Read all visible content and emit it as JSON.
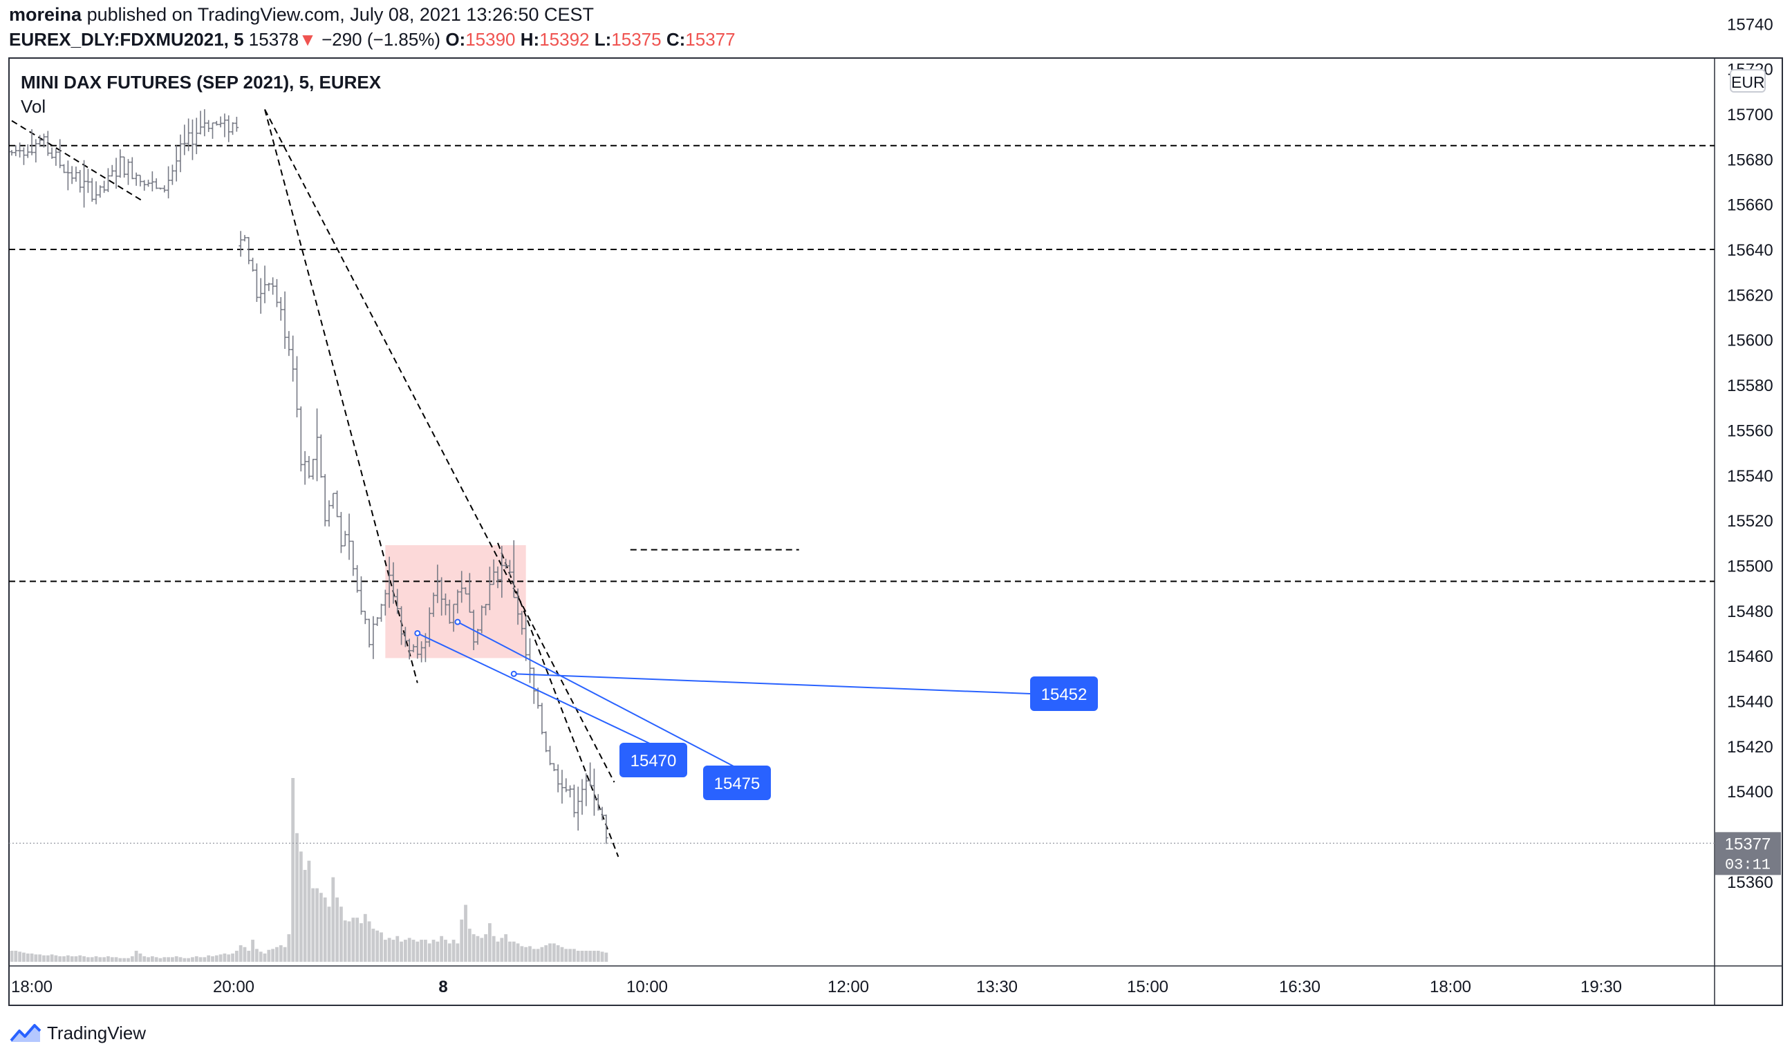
{
  "header": {
    "author": "moreina",
    "published_text": "published on TradingView.com, July 08, 2021 13:26:50 CEST",
    "symbol": "EUREX_DLY:FDXMU2021, 5",
    "last": "15378",
    "change": "−290 (−1.85%)",
    "open_label": "O:",
    "open": "15390",
    "high_label": "H:",
    "high": "15392",
    "low_label": "L:",
    "low": "15375",
    "close_label": "C:",
    "close": "15377"
  },
  "legend": {
    "title": "MINI DAX FUTURES (SEP 2021), 5, EUREX",
    "volume_label": "Vol"
  },
  "currency": "EUR",
  "brand": "TradingView",
  "colors": {
    "bar": "#787b86",
    "volume": "#c9cacd",
    "zone": "#fcd9d9",
    "callout": "#2962ff",
    "price_tag": "#787b86",
    "down": "#ef5350"
  },
  "chart_data": {
    "type": "ohlc",
    "bar_interval_minutes": 5,
    "y_axis": {
      "ylim": [
        15344,
        15742
      ],
      "ticks": [
        15740,
        15720,
        15700,
        15680,
        15660,
        15640,
        15620,
        15600,
        15580,
        15560,
        15540,
        15520,
        15500,
        15480,
        15460,
        15440,
        15420,
        15400,
        15360
      ]
    },
    "x_axis": {
      "ticks": [
        "18:00",
        "20:00",
        "8",
        "10:00",
        "12:00",
        "13:30",
        "15:00",
        "16:30",
        "18:00",
        "19:30"
      ]
    },
    "current_price": {
      "price": "15377",
      "countdown": "03:11"
    },
    "price_segments": [
      {
        "start_bar": 0,
        "points": [
          [
            0,
            15683
          ],
          [
            7,
            15688
          ],
          [
            12,
            15678
          ],
          [
            18,
            15668
          ],
          [
            22,
            15664
          ],
          [
            27,
            15678
          ],
          [
            33,
            15672
          ],
          [
            37,
            15664
          ],
          [
            42,
            15683
          ],
          [
            48,
            15697
          ],
          [
            53,
            15694
          ],
          [
            56,
            15696
          ]
        ]
      },
      {
        "start_bar": 57,
        "points": [
          [
            0,
            15648
          ],
          [
            2,
            15636
          ],
          [
            4,
            15620
          ],
          [
            7,
            15628
          ],
          [
            9,
            15618
          ],
          [
            11,
            15604
          ],
          [
            13,
            15590
          ],
          [
            15,
            15548
          ],
          [
            17,
            15540
          ],
          [
            19,
            15558
          ],
          [
            21,
            15520
          ],
          [
            23,
            15532
          ],
          [
            25,
            15512
          ],
          [
            27,
            15508
          ],
          [
            29,
            15488
          ],
          [
            32,
            15468
          ],
          [
            34,
            15480
          ],
          [
            37,
            15496
          ],
          [
            40,
            15470
          ],
          [
            43,
            15462
          ],
          [
            46,
            15470
          ],
          [
            49,
            15490
          ],
          [
            52,
            15478
          ],
          [
            55,
            15492
          ],
          [
            58,
            15470
          ],
          [
            61,
            15486
          ],
          [
            63,
            15494
          ],
          [
            66,
            15502
          ],
          [
            69,
            15480
          ],
          [
            71,
            15460
          ],
          [
            72,
            15452
          ],
          [
            74,
            15434
          ],
          [
            76,
            15420
          ],
          [
            78,
            15408
          ],
          [
            80,
            15405
          ],
          [
            83,
            15394
          ],
          [
            85,
            15402
          ],
          [
            88,
            15400
          ],
          [
            90,
            15388
          ],
          [
            91,
            15377
          ]
        ]
      }
    ],
    "volume": [
      {
        "start_bar": 0,
        "values": [
          12,
          12,
          11,
          10,
          9,
          9,
          8,
          8,
          7,
          7,
          8,
          7,
          6,
          6,
          7,
          6,
          6,
          7,
          6,
          5,
          5,
          6,
          5,
          5,
          6,
          5,
          5,
          4,
          4,
          4,
          6,
          12,
          9,
          6,
          5,
          6,
          5,
          4,
          5,
          5,
          5,
          6,
          5,
          4,
          4,
          5,
          6,
          5,
          5,
          7,
          6,
          7,
          8,
          9,
          8,
          9,
          12
        ]
      },
      {
        "start_bar": 57,
        "values": [
          18,
          16,
          12,
          24,
          14,
          11,
          9,
          13,
          14,
          16,
          18,
          16,
          30,
          200,
          140,
          120,
          100,
          110,
          80,
          80,
          75,
          70,
          60,
          92,
          70,
          60,
          45,
          44,
          48,
          48,
          42,
          52,
          44,
          36,
          34,
          32,
          24,
          26,
          24,
          28,
          22,
          24,
          26,
          24,
          22,
          24,
          24,
          20,
          24,
          22,
          28,
          24,
          20,
          24,
          20,
          46,
          62,
          36,
          30,
          28,
          26,
          30,
          42,
          28,
          22,
          26,
          30,
          22,
          22,
          20,
          17,
          16,
          17,
          14,
          14,
          16,
          18,
          20,
          20,
          18,
          16,
          14,
          14,
          14,
          12,
          12,
          12,
          12,
          12,
          12,
          11,
          10
        ]
      }
    ],
    "horizontal_lines": [
      15686,
      15640,
      15493
    ],
    "horizontal_ray": {
      "price": 15507,
      "from_bar": 154,
      "to_bar": 196
    },
    "trend_lines": [
      {
        "from": [
          0,
          15697
        ],
        "to": [
          33,
          15661
        ]
      },
      {
        "from": [
          63,
          15702
        ],
        "to": [
          150,
          15404
        ]
      },
      {
        "from": [
          63,
          15702
        ],
        "to": [
          101,
          15448
        ]
      },
      {
        "from": [
          121,
          15510
        ],
        "to": [
          151,
          15371
        ]
      }
    ],
    "zone": {
      "from_bar": 93,
      "to_bar": 128,
      "high": 15509,
      "low": 15459
    },
    "callouts": [
      {
        "label": "15470",
        "anchor": [
          101,
          15470
        ]
      },
      {
        "label": "15475",
        "anchor": [
          111,
          15475
        ]
      },
      {
        "label": "15452",
        "anchor": [
          125,
          15452
        ]
      }
    ]
  }
}
